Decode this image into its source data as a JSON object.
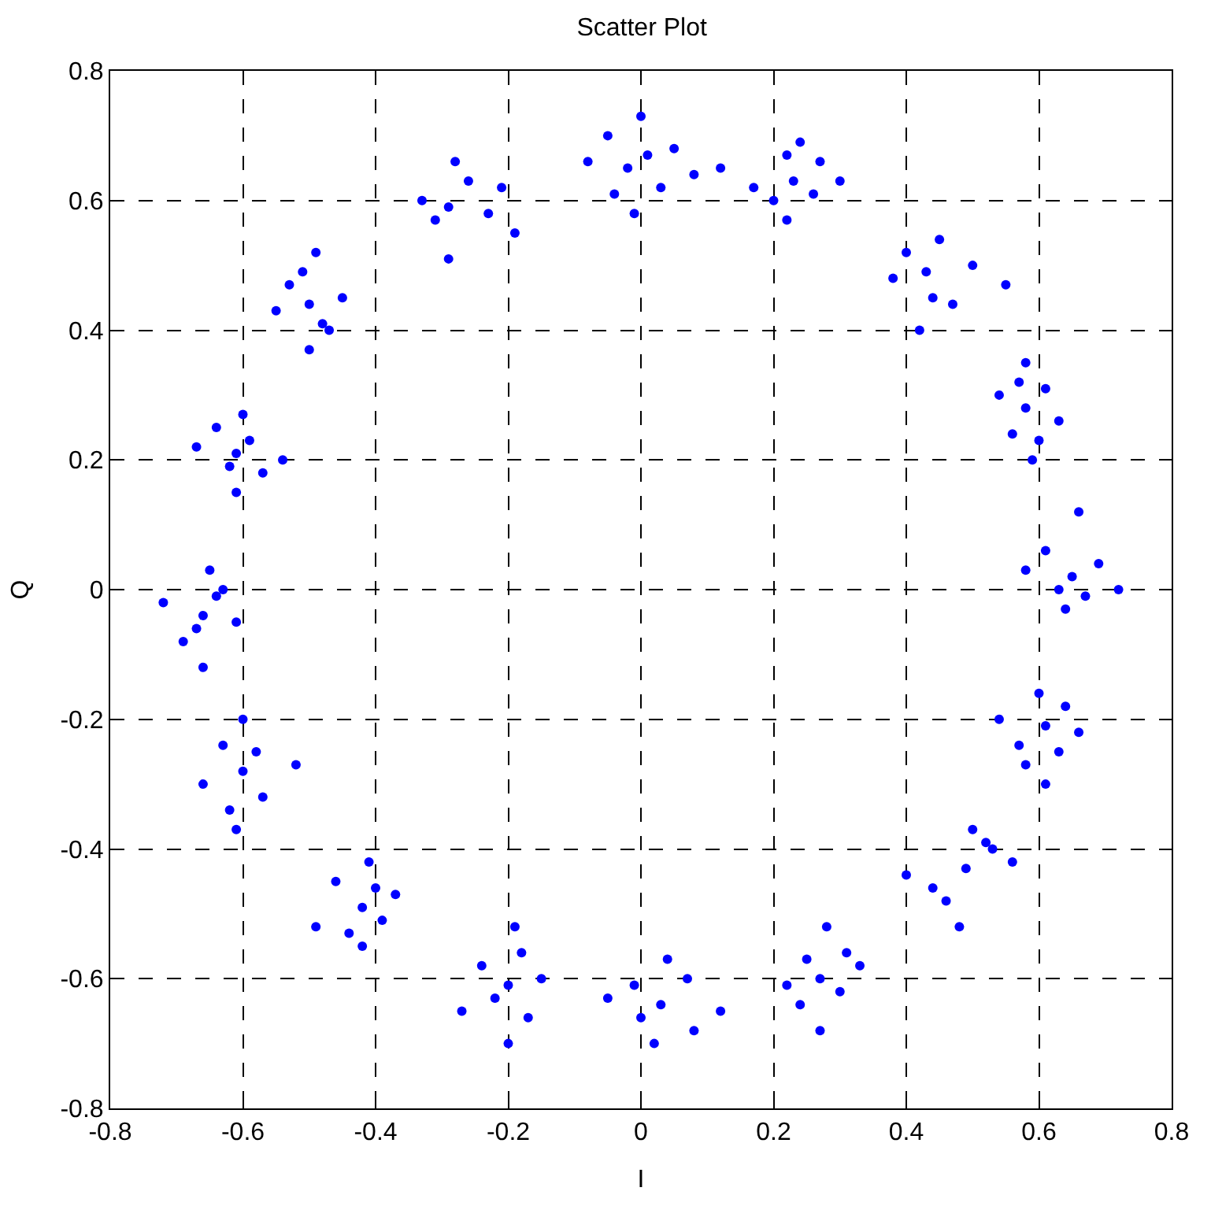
{
  "chart_data": {
    "type": "scatter",
    "title": "Scatter Plot",
    "xlabel": "I",
    "ylabel": "Q",
    "xlim": [
      -0.8,
      0.8
    ],
    "xticks": [
      -0.8,
      -0.6,
      -0.4,
      -0.2,
      0,
      0.2,
      0.4,
      0.6,
      0.8
    ],
    "ylim": [
      -0.8,
      0.8
    ],
    "yticks": [
      -0.8,
      -0.6,
      -0.4,
      -0.2,
      0,
      0.2,
      0.4,
      0.6,
      0.8
    ],
    "grid": true,
    "marker": "circle",
    "series": [
      {
        "color": "#0000ff",
        "x": [
          -0.02,
          -0.08,
          0.08,
          -0.01,
          0.0,
          -0.05,
          0.03,
          -0.04,
          0.05,
          0.01,
          0.23,
          0.12,
          0.3,
          0.22,
          0.24,
          0.17,
          0.27,
          0.2,
          0.26,
          0.22,
          0.43,
          0.38,
          0.5,
          0.55,
          0.42,
          0.45,
          0.4,
          0.47,
          0.44,
          0.58,
          0.54,
          0.63,
          0.59,
          0.58,
          0.56,
          0.61,
          0.57,
          0.6,
          0.65,
          0.58,
          0.72,
          0.64,
          0.66,
          0.61,
          0.69,
          0.63,
          0.67,
          0.61,
          0.54,
          0.66,
          0.61,
          0.6,
          0.57,
          0.64,
          0.58,
          0.63,
          0.49,
          0.4,
          0.56,
          0.48,
          0.5,
          0.44,
          0.53,
          0.46,
          0.52,
          0.27,
          0.22,
          0.33,
          0.27,
          0.28,
          0.24,
          0.31,
          0.25,
          0.3,
          0.03,
          -0.05,
          0.12,
          0.02,
          0.04,
          -0.01,
          0.08,
          0.0,
          0.07,
          -0.2,
          -0.27,
          -0.15,
          -0.2,
          -0.19,
          -0.24,
          -0.17,
          -0.22,
          -0.18,
          -0.42,
          -0.49,
          -0.37,
          -0.42,
          -0.41,
          -0.46,
          -0.39,
          -0.44,
          -0.4,
          -0.6,
          -0.66,
          -0.52,
          -0.61,
          -0.6,
          -0.63,
          -0.57,
          -0.62,
          -0.58,
          -0.66,
          -0.72,
          -0.61,
          -0.66,
          -0.65,
          -0.69,
          -0.63,
          -0.67,
          -0.64,
          -0.61,
          -0.67,
          -0.54,
          -0.61,
          -0.6,
          -0.64,
          -0.57,
          -0.62,
          -0.59,
          -0.5,
          -0.55,
          -0.45,
          -0.5,
          -0.49,
          -0.53,
          -0.47,
          -0.51,
          -0.48,
          -0.29,
          -0.33,
          -0.23,
          -0.29,
          -0.28,
          -0.19,
          -0.21,
          -0.31,
          -0.26
        ],
        "values": [
          0.65,
          0.66,
          0.64,
          0.58,
          0.73,
          0.7,
          0.62,
          0.61,
          0.68,
          0.67,
          0.63,
          0.65,
          0.63,
          0.57,
          0.69,
          0.62,
          0.66,
          0.6,
          0.61,
          0.67,
          0.49,
          0.48,
          0.5,
          0.47,
          0.4,
          0.54,
          0.52,
          0.44,
          0.45,
          0.28,
          0.3,
          0.26,
          0.2,
          0.35,
          0.24,
          0.31,
          0.32,
          0.23,
          0.02,
          0.03,
          0.0,
          -0.03,
          0.12,
          0.06,
          0.04,
          0.0,
          -0.01,
          -0.21,
          -0.2,
          -0.22,
          -0.3,
          -0.16,
          -0.24,
          -0.18,
          -0.27,
          -0.25,
          -0.43,
          -0.44,
          -0.42,
          -0.52,
          -0.37,
          -0.46,
          -0.4,
          -0.48,
          -0.39,
          -0.6,
          -0.61,
          -0.58,
          -0.68,
          -0.52,
          -0.64,
          -0.56,
          -0.57,
          -0.62,
          -0.64,
          -0.63,
          -0.65,
          -0.7,
          -0.57,
          -0.61,
          -0.68,
          -0.66,
          -0.6,
          -0.61,
          -0.65,
          -0.6,
          -0.7,
          -0.52,
          -0.58,
          -0.66,
          -0.63,
          -0.56,
          -0.49,
          -0.52,
          -0.47,
          -0.55,
          -0.42,
          -0.45,
          -0.51,
          -0.53,
          -0.46,
          -0.28,
          -0.3,
          -0.27,
          -0.37,
          -0.2,
          -0.24,
          -0.32,
          -0.34,
          -0.25,
          -0.04,
          -0.02,
          -0.05,
          -0.12,
          0.03,
          -0.08,
          0.0,
          -0.06,
          -0.01,
          0.21,
          0.22,
          0.2,
          0.15,
          0.27,
          0.25,
          0.18,
          0.19,
          0.23,
          0.44,
          0.43,
          0.45,
          0.37,
          0.52,
          0.47,
          0.4,
          0.49,
          0.41,
          0.59,
          0.6,
          0.58,
          0.51,
          0.66,
          0.55,
          0.62,
          0.57,
          0.63
        ]
      }
    ]
  }
}
